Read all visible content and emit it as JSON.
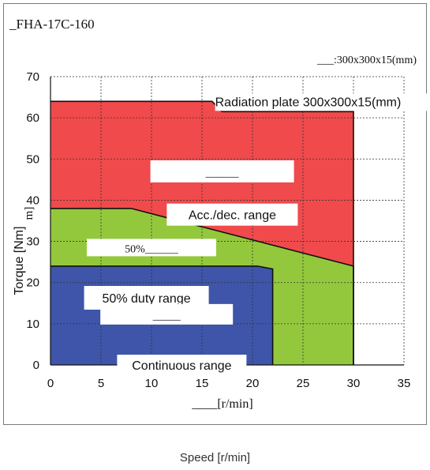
{
  "colors": {
    "radiation": "#f04a4c",
    "accdec": "#94c83c",
    "duty50": "#3e55a9",
    "continuous": "#3e55a9",
    "label_box": "#ffffff",
    "grid": "#333333"
  },
  "chart_data": {
    "type": "area",
    "title": "_FHA-17C-160",
    "note": "___:300x300x15(mm)",
    "xlabel_inner": "____[r/min]",
    "ylabel_prefix": "Torque [Nm]",
    "ylabel_suffix": "m]",
    "xlabel": "Speed [r/min]",
    "xlim": [
      0,
      35
    ],
    "ylim": [
      0,
      70
    ],
    "xticks": [
      0,
      5,
      10,
      15,
      20,
      25,
      30,
      35
    ],
    "yticks": [
      0,
      10,
      20,
      30,
      40,
      50,
      60,
      70
    ],
    "grid": true,
    "series": [
      {
        "name": "Radiation plate 300x300x15(mm)",
        "color_key": "radiation",
        "points": [
          [
            0,
            64
          ],
          [
            16,
            64
          ],
          [
            17,
            61.5
          ],
          [
            30,
            61.5
          ],
          [
            30,
            0
          ],
          [
            0,
            0
          ]
        ]
      },
      {
        "name": "Acc./dec. range",
        "color_key": "accdec",
        "points": [
          [
            0,
            38
          ],
          [
            8,
            38
          ],
          [
            30,
            24
          ],
          [
            30,
            0
          ],
          [
            0,
            0
          ]
        ]
      },
      {
        "name": "50% duty range",
        "color_key": "duty50",
        "points": [
          [
            0,
            24
          ],
          [
            20.5,
            24
          ],
          [
            22,
            23.3
          ],
          [
            22,
            0
          ],
          [
            0,
            0
          ]
        ]
      },
      {
        "name": "Continuous range",
        "color_key": "continuous",
        "points": [
          [
            0,
            0
          ],
          [
            0,
            0
          ]
        ]
      }
    ],
    "annotations": [
      {
        "id": "radiation_label",
        "text": "Radiation plate 300x300x15(mm)",
        "x": 16.3,
        "y": 64,
        "serif": false,
        "anchor": "start"
      },
      {
        "id": "radiation_blank",
        "text": "______",
        "x": 17,
        "y": 47,
        "serif": true,
        "anchor": "middle"
      },
      {
        "id": "accdec_label",
        "text": "Acc./dec. range",
        "x": 18,
        "y": 36.5,
        "serif": false,
        "anchor": "middle"
      },
      {
        "id": "duty_small",
        "text": "50%______",
        "x": 10,
        "y": 28.5,
        "serif": true,
        "anchor": "middle"
      },
      {
        "id": "duty_label",
        "text": "50% duty range",
        "x": 9.5,
        "y": 16.3,
        "serif": false,
        "anchor": "middle"
      },
      {
        "id": "duty_blank",
        "text": "_____",
        "x": 11.5,
        "y": 12.3,
        "serif": true,
        "anchor": "middle"
      },
      {
        "id": "continuous_label",
        "text": "Continuous range",
        "x": 13,
        "y": 0,
        "serif": false,
        "anchor": "middle"
      }
    ]
  }
}
